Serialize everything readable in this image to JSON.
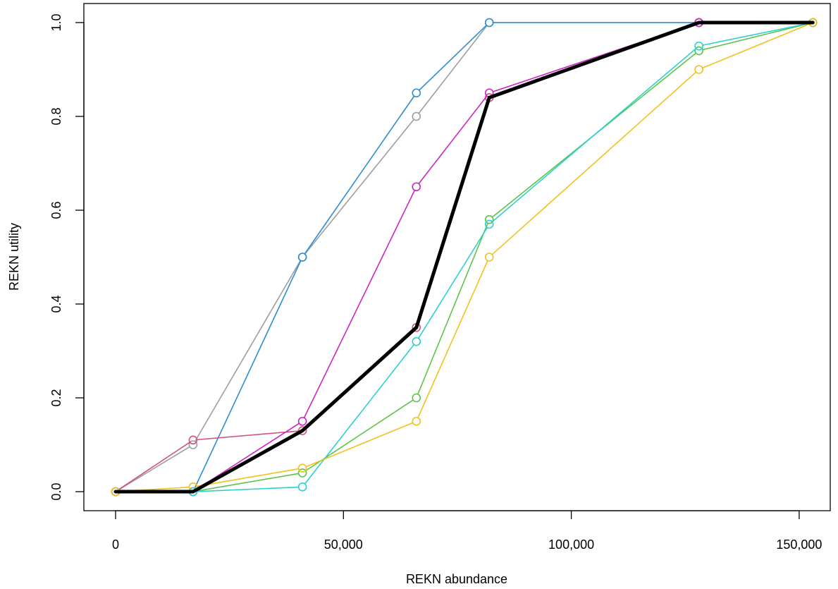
{
  "chart_data": {
    "type": "line",
    "title": "",
    "xlabel": "REKN abundance",
    "ylabel": "REKN utility",
    "xlim": [
      0,
      155000
    ],
    "ylim": [
      0,
      1
    ],
    "x_ticks": [
      0,
      50000,
      100000,
      150000
    ],
    "x_tick_labels": [
      "0",
      "50,000",
      "100,000",
      "150,000"
    ],
    "y_ticks": [
      0,
      0.2,
      0.4,
      0.6,
      0.8,
      1.0
    ],
    "y_tick_labels": [
      "0.0",
      "0.2",
      "0.4",
      "0.6",
      "0.8",
      "1.0"
    ],
    "grid": false,
    "legend": "none",
    "x": [
      0,
      17000,
      41000,
      66000,
      82000,
      128000,
      153000
    ],
    "series": [
      {
        "color": "#9e9e9e",
        "values": [
          0,
          0.1,
          0.5,
          0.8,
          1.0,
          1.0,
          1.0
        ],
        "bold": false
      },
      {
        "color": "#2c8fd1",
        "values": [
          0,
          0.0,
          0.5,
          0.85,
          1.0,
          1.0,
          1.0
        ],
        "bold": false
      },
      {
        "color": "#d2527a",
        "values": [
          0,
          0.11,
          0.13,
          0.35,
          0.84,
          1.0,
          1.0
        ],
        "bold": false
      },
      {
        "color": "#cc25c2",
        "values": [
          0,
          0.0,
          0.15,
          0.65,
          0.85,
          1.0,
          1.0
        ],
        "bold": false
      },
      {
        "color": "#5ec449",
        "values": [
          0,
          0.0,
          0.04,
          0.2,
          0.58,
          0.94,
          1.0
        ],
        "bold": false
      },
      {
        "color": "#2ad1d1",
        "values": [
          0,
          0.0,
          0.01,
          0.32,
          0.57,
          0.95,
          1.0
        ],
        "bold": false
      },
      {
        "color": "#f2c11c",
        "values": [
          0,
          0.01,
          0.05,
          0.15,
          0.5,
          0.9,
          1.0
        ],
        "bold": false
      },
      {
        "color": "#000000",
        "values": [
          0,
          0.0,
          0.13,
          0.35,
          0.84,
          1.0,
          1.0
        ],
        "bold": true
      }
    ]
  }
}
